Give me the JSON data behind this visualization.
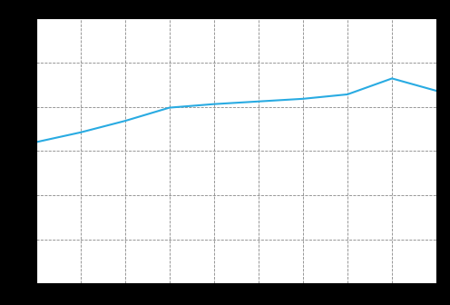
{
  "x_values": [
    2001,
    2002,
    2003,
    2004,
    2005,
    2006,
    2007,
    2008,
    2009,
    2010
  ],
  "y_values": [
    16.0,
    17.1,
    18.4,
    19.9,
    20.3,
    20.6,
    20.9,
    21.4,
    23.2,
    21.8
  ],
  "line_color": "#29ABE2",
  "line_width": 1.5,
  "plot_bg_color": "#ffffff",
  "outer_bg_color": "#000000",
  "grid_color": "#888888",
  "grid_alpha": 1.0,
  "xlim": [
    2001,
    2010
  ],
  "ylim": [
    0,
    30
  ],
  "yticks": [
    0,
    5,
    10,
    15,
    20,
    25,
    30
  ],
  "xticks": [
    2001,
    2002,
    2003,
    2004,
    2005,
    2006,
    2007,
    2008,
    2009,
    2010
  ]
}
